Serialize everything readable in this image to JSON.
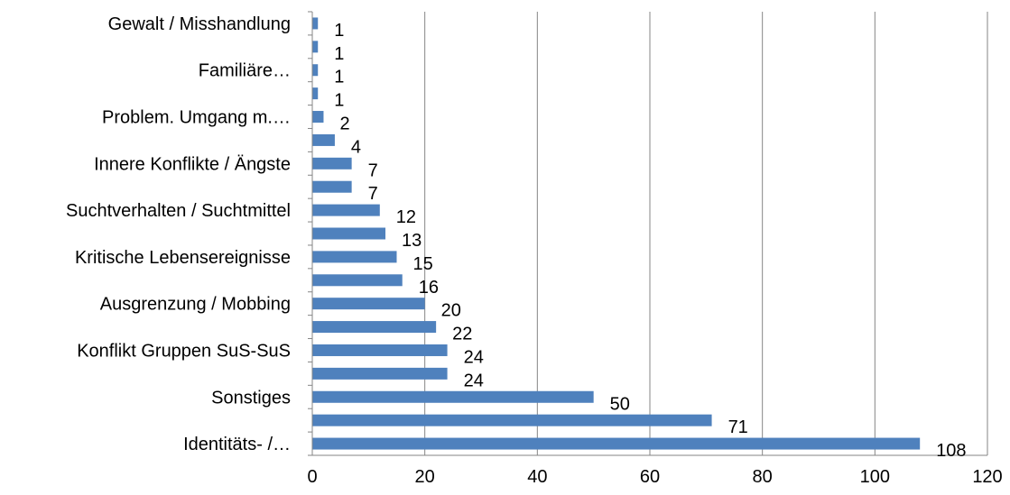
{
  "chart_data": {
    "type": "bar",
    "orientation": "horizontal",
    "categories": [
      "Gewalt / Misshandlung",
      "",
      "Familiäre…",
      "",
      "Problem. Umgang m.…",
      "",
      "Innere Konflikte / Ängste",
      "",
      "Suchtverhalten / Suchtmittel",
      "",
      "Kritische Lebensereignisse",
      "",
      "Ausgrenzung / Mobbing",
      "",
      "Konflikt Gruppen SuS-SuS",
      "",
      "Sonstiges",
      "",
      "Identitäts- /…"
    ],
    "values": [
      1,
      1,
      1,
      1,
      2,
      4,
      7,
      7,
      12,
      13,
      15,
      16,
      20,
      22,
      24,
      24,
      50,
      71,
      108
    ],
    "value_labels": [
      "1",
      "1",
      "1",
      "1",
      "2",
      "4",
      "7",
      "7",
      "12",
      "13",
      "15",
      "16",
      "20",
      "22",
      "24",
      "24",
      "50",
      "71",
      "108"
    ],
    "x_ticks": [
      "0",
      "20",
      "40",
      "60",
      "80",
      "100",
      "120"
    ],
    "xlim": [
      0,
      120
    ],
    "grid": "vertical",
    "bar_color": "#4f81bd",
    "grid_color": "#868686",
    "title": "",
    "xlabel": "",
    "ylabel": ""
  }
}
